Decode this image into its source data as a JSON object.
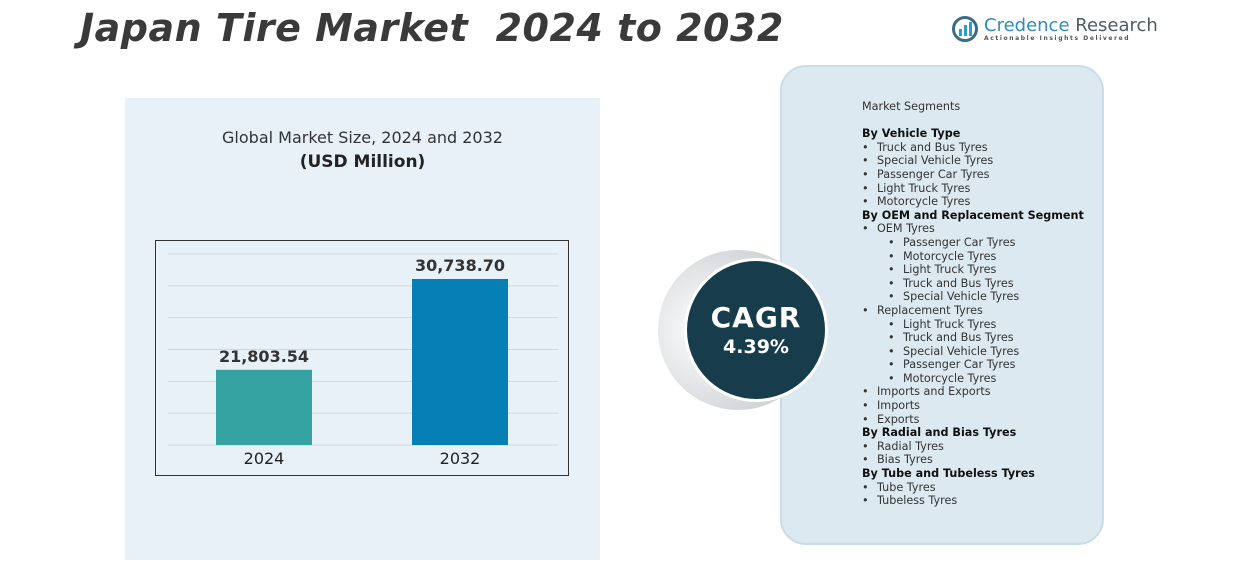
{
  "title": "Japan Tire Market  2024 to 2032",
  "logo": {
    "name_part1": "Credence",
    "name_part2": "Research",
    "tagline": "Actionable Insights Delivered"
  },
  "cagr": {
    "label": "CAGR",
    "value": "4.39%"
  },
  "colors": {
    "bar_2024": "#35a3a2",
    "bar_2032": "#0680b4",
    "cagr_circle": "#173d4d",
    "panel": "#e8f1f8"
  },
  "chart_data": {
    "type": "bar",
    "title": "Global Market Size, 2024 and 2032",
    "subtitle": "(USD Million)",
    "categories": [
      "2024",
      "2032"
    ],
    "values": [
      21803.54,
      30738.7
    ],
    "value_labels": [
      "21,803.54",
      "30,738.70"
    ],
    "xlabel": "",
    "ylabel": "",
    "ylim": [
      14400,
      33200
    ],
    "grid": true
  },
  "segments": {
    "title": "Market Segments",
    "items": [
      {
        "level": 0,
        "text": "By Vehicle Type"
      },
      {
        "level": 1,
        "text": "Truck and Bus Tyres"
      },
      {
        "level": 1,
        "text": "Special Vehicle Tyres"
      },
      {
        "level": 1,
        "text": "Passenger Car Tyres"
      },
      {
        "level": 1,
        "text": "Light Truck Tyres"
      },
      {
        "level": 1,
        "text": "Motorcycle Tyres"
      },
      {
        "level": 0,
        "text": "By OEM and Replacement Segment"
      },
      {
        "level": 1,
        "text": "OEM Tyres"
      },
      {
        "level": 2,
        "text": "Passenger Car Tyres"
      },
      {
        "level": 2,
        "text": "Motorcycle Tyres"
      },
      {
        "level": 2,
        "text": "Light Truck Tyres"
      },
      {
        "level": 2,
        "text": "Truck and Bus Tyres"
      },
      {
        "level": 2,
        "text": "Special Vehicle Tyres"
      },
      {
        "level": 1,
        "text": "Replacement Tyres"
      },
      {
        "level": 2,
        "text": "Light Truck Tyres"
      },
      {
        "level": 2,
        "text": "Truck and Bus Tyres"
      },
      {
        "level": 2,
        "text": "Special Vehicle Tyres"
      },
      {
        "level": 2,
        "text": "Passenger Car Tyres"
      },
      {
        "level": 2,
        "text": "Motorcycle Tyres"
      },
      {
        "level": 1,
        "text": "Imports and Exports"
      },
      {
        "level": 1,
        "text": "Imports"
      },
      {
        "level": 1,
        "text": "Exports"
      },
      {
        "level": 0,
        "text": "By Radial and Bias Tyres"
      },
      {
        "level": 1,
        "text": "Radial Tyres"
      },
      {
        "level": 1,
        "text": "Bias Tyres"
      },
      {
        "level": 0,
        "text": "By Tube and Tubeless Tyres"
      },
      {
        "level": 1,
        "text": "Tube Tyres"
      },
      {
        "level": 1,
        "text": "Tubeless Tyres"
      }
    ]
  }
}
